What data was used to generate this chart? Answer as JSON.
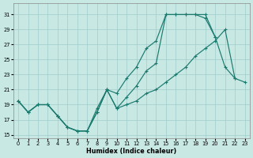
{
  "xlabel": "Humidex (Indice chaleur)",
  "bg_color": "#c8e8e4",
  "grid_color": "#a0cccc",
  "line_color": "#1a7a6e",
  "xlim": [
    -0.5,
    23.5
  ],
  "ylim": [
    14.5,
    32.5
  ],
  "xticks": [
    0,
    1,
    2,
    3,
    4,
    5,
    6,
    7,
    8,
    9,
    10,
    11,
    12,
    13,
    14,
    15,
    16,
    17,
    18,
    19,
    20,
    21,
    22,
    23
  ],
  "yticks": [
    15,
    17,
    19,
    21,
    23,
    25,
    27,
    29,
    31
  ],
  "line_top_x": [
    0,
    1,
    2,
    3,
    4,
    5,
    6,
    7,
    8,
    9,
    10,
    11,
    12,
    13,
    14,
    15,
    16,
    17,
    18,
    19,
    20
  ],
  "line_top_y": [
    19.5,
    18.0,
    19.0,
    19.0,
    17.5,
    16.0,
    15.5,
    15.5,
    18.5,
    21.0,
    20.5,
    22.5,
    24.0,
    26.5,
    27.5,
    31.0,
    31.0,
    31.0,
    31.0,
    30.5,
    28.0
  ],
  "line_mid_x": [
    0,
    1,
    2,
    3,
    4,
    5,
    6,
    7,
    8,
    9,
    10,
    11,
    12,
    13,
    14,
    15,
    16,
    17,
    18,
    19,
    20,
    21,
    22
  ],
  "line_mid_y": [
    19.5,
    18.0,
    19.0,
    19.0,
    17.5,
    16.0,
    15.5,
    15.5,
    18.0,
    21.0,
    18.5,
    20.0,
    21.5,
    23.5,
    24.5,
    31.0,
    31.0,
    31.0,
    31.0,
    31.0,
    28.0,
    24.0,
    22.5
  ],
  "line_bot_x": [
    0,
    1,
    2,
    3,
    4,
    5,
    6,
    7,
    8,
    9,
    10,
    11,
    12,
    13,
    14,
    15,
    16,
    17,
    18,
    19,
    20,
    21,
    22,
    23
  ],
  "line_bot_y": [
    19.5,
    18.0,
    19.0,
    19.0,
    17.5,
    16.0,
    15.5,
    15.5,
    18.0,
    21.0,
    18.5,
    19.0,
    19.5,
    20.5,
    21.0,
    22.0,
    23.0,
    24.0,
    25.5,
    26.5,
    27.5,
    29.0,
    22.5,
    22.0
  ]
}
